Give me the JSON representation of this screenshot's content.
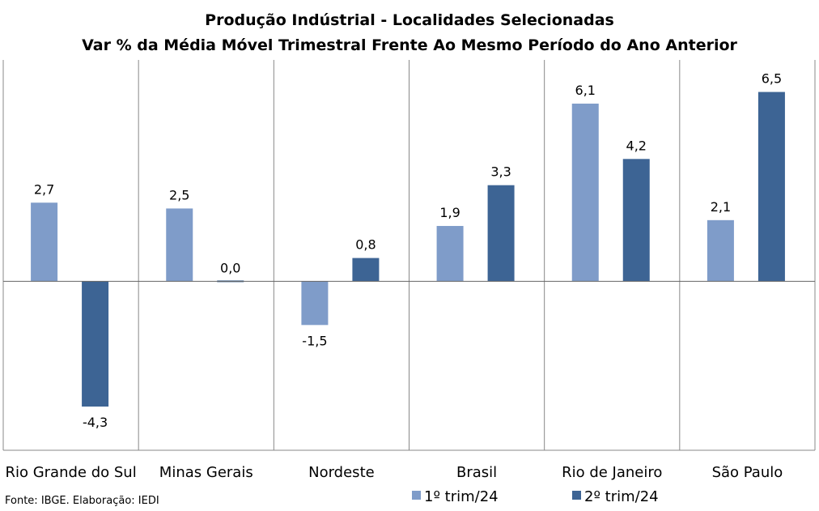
{
  "chart_data": {
    "type": "bar",
    "title": "Produção Indústrial - Localidades Selecionadas",
    "subtitle": "Var % da Média Móvel Trimestral Frente Ao Mesmo Período do Ano Anterior",
    "categories": [
      "Rio Grande do Sul",
      "Minas Gerais",
      "Nordeste",
      "Brasil",
      "Rio de Janeiro",
      "São Paulo"
    ],
    "series": [
      {
        "name": "1º trim/24",
        "values": [
          2.7,
          2.5,
          -1.5,
          1.9,
          6.1,
          2.1
        ],
        "labels": [
          "2,7",
          "2,5",
          "-1,5",
          "1,9",
          "6,1",
          "2,1"
        ],
        "color": "#7F9CC9"
      },
      {
        "name": "2º trim/24",
        "values": [
          -4.3,
          0.0,
          0.8,
          3.3,
          4.2,
          6.5
        ],
        "labels": [
          "-4,3",
          "0,0",
          "0,8",
          "3,3",
          "4,2",
          "6,5"
        ],
        "color": "#3D6494"
      }
    ],
    "ylim": [
      -5.8,
      7.6
    ],
    "grid": false,
    "legend": "bottom-right",
    "source": "Fonte: IBGE. Elaboração: IEDI"
  }
}
